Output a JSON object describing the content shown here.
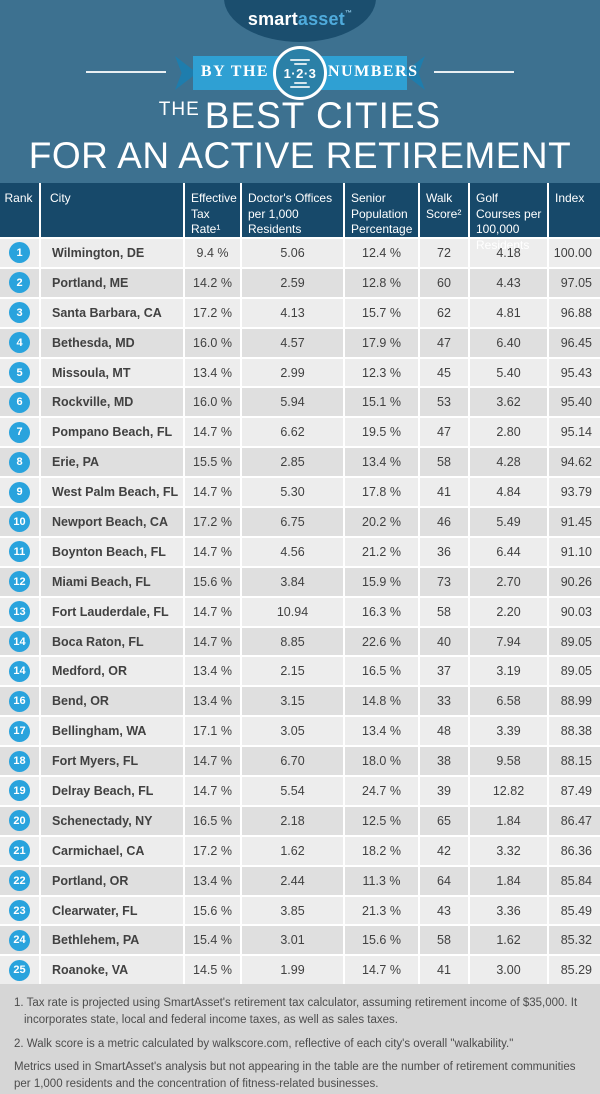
{
  "theme": {
    "background_blue": "#3d7190",
    "navy": "#17496a",
    "ribbon_blue": "#2fa0d3",
    "ribbon_fold_blue": "#1e7dad",
    "rank_badge_blue": "#29a3dd",
    "row_light": "#ededed",
    "row_dark": "#dfdfdf",
    "footer_gray": "#d6d6d6"
  },
  "logo": {
    "smart": "smart",
    "asset": "asset",
    "tm": "™"
  },
  "banner": {
    "left": "BY THE",
    "circle": "1·2·3",
    "right": "NUMBERS"
  },
  "title": {
    "prefix": "THE",
    "line1": "BEST CITIES",
    "line2": "FOR AN ACTIVE RETIREMENT"
  },
  "chart_data": {
    "type": "table",
    "title": "The Best Cities for an Active Retirement",
    "columns": [
      "Rank",
      "City",
      "Effective Tax Rate¹",
      "Doctor's Offices per 1,000 Residents",
      "Senior Population Percentage",
      "Walk Score²",
      "Golf Courses per 100,000 Residents",
      "Index"
    ],
    "rows": [
      [
        "1",
        "Wilmington, DE",
        "9.4 %",
        "5.06",
        "12.4 %",
        "72",
        "4.18",
        "100.00"
      ],
      [
        "2",
        "Portland, ME",
        "14.2 %",
        "2.59",
        "12.8 %",
        "60",
        "4.43",
        "97.05"
      ],
      [
        "3",
        "Santa Barbara, CA",
        "17.2 %",
        "4.13",
        "15.7 %",
        "62",
        "4.81",
        "96.88"
      ],
      [
        "4",
        "Bethesda, MD",
        "16.0 %",
        "4.57",
        "17.9 %",
        "47",
        "6.40",
        "96.45"
      ],
      [
        "5",
        "Missoula, MT",
        "13.4 %",
        "2.99",
        "12.3 %",
        "45",
        "5.40",
        "95.43"
      ],
      [
        "6",
        "Rockville, MD",
        "16.0 %",
        "5.94",
        "15.1 %",
        "53",
        "3.62",
        "95.40"
      ],
      [
        "7",
        "Pompano Beach, FL",
        "14.7 %",
        "6.62",
        "19.5 %",
        "47",
        "2.80",
        "95.14"
      ],
      [
        "8",
        "Erie, PA",
        "15.5 %",
        "2.85",
        "13.4 %",
        "58",
        "4.28",
        "94.62"
      ],
      [
        "9",
        "West Palm Beach, FL",
        "14.7 %",
        "5.30",
        "17.8 %",
        "41",
        "4.84",
        "93.79"
      ],
      [
        "10",
        "Newport Beach, CA",
        "17.2 %",
        "6.75",
        "20.2 %",
        "46",
        "5.49",
        "91.45"
      ],
      [
        "11",
        "Boynton Beach, FL",
        "14.7 %",
        "4.56",
        "21.2 %",
        "36",
        "6.44",
        "91.10"
      ],
      [
        "12",
        "Miami Beach, FL",
        "15.6 %",
        "3.84",
        "15.9 %",
        "73",
        "2.70",
        "90.26"
      ],
      [
        "13",
        "Fort Lauderdale, FL",
        "14.7 %",
        "10.94",
        "16.3 %",
        "58",
        "2.20",
        "90.03"
      ],
      [
        "14",
        "Boca Raton, FL",
        "14.7 %",
        "8.85",
        "22.6 %",
        "40",
        "7.94",
        "89.05"
      ],
      [
        "14",
        "Medford, OR",
        "13.4 %",
        "2.15",
        "16.5 %",
        "37",
        "3.19",
        "89.05"
      ],
      [
        "16",
        "Bend, OR",
        "13.4 %",
        "3.15",
        "14.8 %",
        "33",
        "6.58",
        "88.99"
      ],
      [
        "17",
        "Bellingham, WA",
        "17.1 %",
        "3.05",
        "13.4 %",
        "48",
        "3.39",
        "88.38"
      ],
      [
        "18",
        "Fort Myers, FL",
        "14.7 %",
        "6.70",
        "18.0 %",
        "38",
        "9.58",
        "88.15"
      ],
      [
        "19",
        "Delray Beach, FL",
        "14.7 %",
        "5.54",
        "24.7 %",
        "39",
        "12.82",
        "87.49"
      ],
      [
        "20",
        "Schenectady, NY",
        "16.5 %",
        "2.18",
        "12.5 %",
        "65",
        "1.84",
        "86.47"
      ],
      [
        "21",
        "Carmichael, CA",
        "17.2 %",
        "1.62",
        "18.2 %",
        "42",
        "3.32",
        "86.36"
      ],
      [
        "22",
        "Portland, OR",
        "13.4 %",
        "2.44",
        "11.3 %",
        "64",
        "1.84",
        "85.84"
      ],
      [
        "23",
        "Clearwater, FL",
        "15.6 %",
        "3.85",
        "21.3 %",
        "43",
        "3.36",
        "85.49"
      ],
      [
        "24",
        "Bethlehem, PA",
        "15.4 %",
        "3.01",
        "15.6 %",
        "58",
        "1.62",
        "85.32"
      ],
      [
        "25",
        "Roanoke, VA",
        "14.5 %",
        "1.99",
        "14.7 %",
        "41",
        "3.00",
        "85.29"
      ]
    ]
  },
  "footnotes": [
    "1. Tax rate is projected using SmartAsset's retirement tax calculator, assuming retirement income of $35,000. It incorporates state, local and federal income taxes, as well as sales taxes.",
    "2. Walk score is a metric calculated by walkscore.com, reflective of each city's overall \"walkability.\"",
    "Metrics used in SmartAsset's analysis but not appearing in the table are the number of retirement communities per 1,000 residents and the concentration of fitness-related businesses."
  ]
}
